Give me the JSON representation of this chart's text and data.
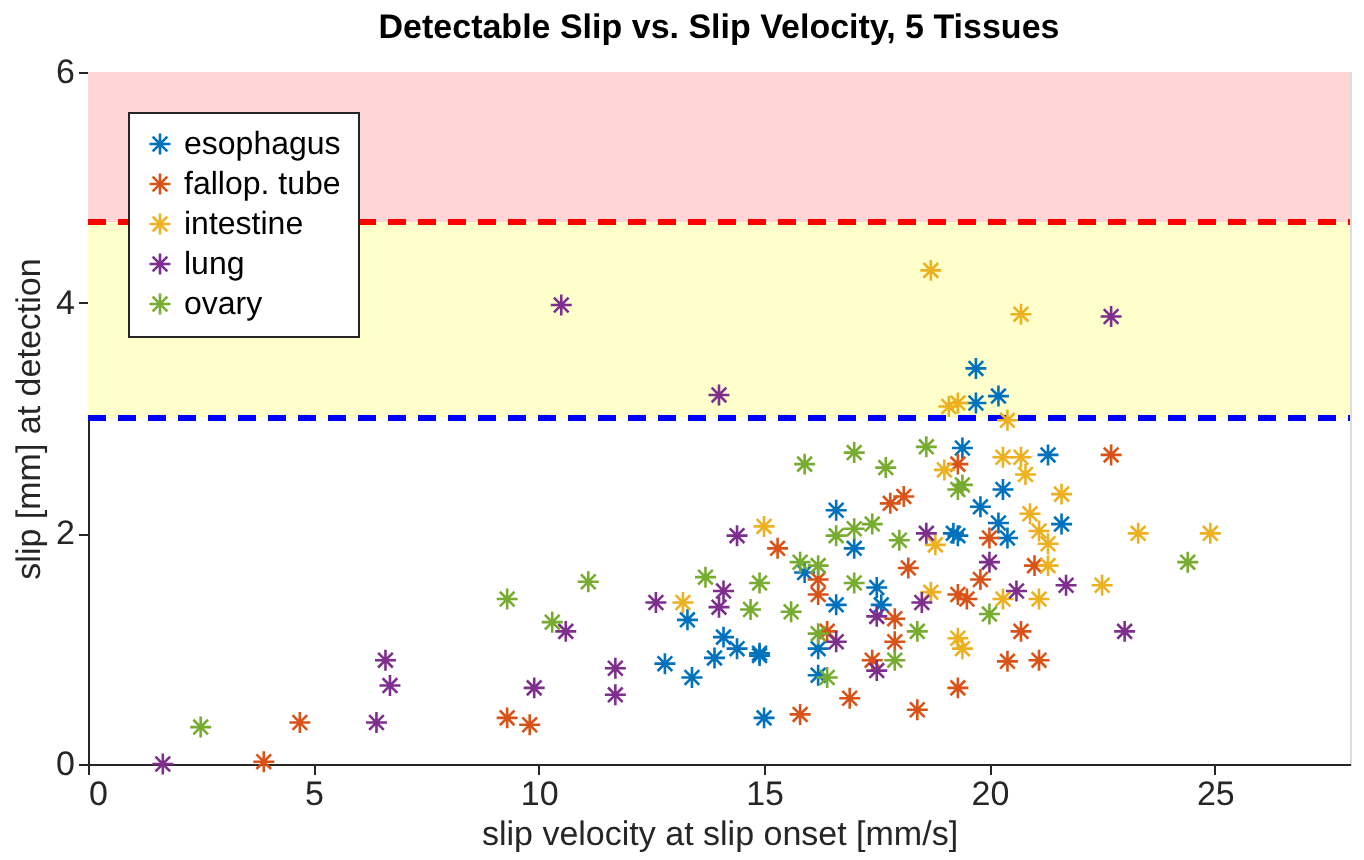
{
  "chart_data": {
    "type": "scatter",
    "title": "Detectable Slip vs. Slip Velocity, 5 Tissues",
    "xlabel": "slip velocity at slip onset [mm/s]",
    "ylabel": "slip [mm] at detection",
    "xlim": [
      0,
      28
    ],
    "xticks": [
      0,
      5,
      10,
      15,
      20,
      25
    ],
    "ylim": [
      0,
      6
    ],
    "yticks": [
      0,
      2,
      4,
      6
    ],
    "grid": false,
    "legend": "top left",
    "marker": "cross",
    "bands": [
      {
        "axis": "y",
        "from": 3,
        "to": 4.7,
        "color": "#ffffcc"
      },
      {
        "axis": "y",
        "from": 4.7,
        "to": 6,
        "color": "#ffd5d5"
      }
    ],
    "ref_lines": [
      {
        "axis": "y",
        "value": 4.7,
        "color": "#ff0000",
        "line_style": "dashed"
      },
      {
        "axis": "y",
        "value": 3,
        "color": "#0000ff",
        "line_style": "dashed"
      }
    ],
    "series": [
      {
        "name": "esophagus",
        "color": "#0072bd",
        "x": [
          12.8,
          13.4,
          13.9,
          14.1,
          14.4,
          14.9,
          13.3,
          15.0,
          16.6,
          17.0,
          15.9,
          17.5,
          19.2,
          16.6,
          17.6,
          16.2,
          16.2,
          14.9,
          19.4,
          19.7,
          19.7,
          20.2,
          21.3,
          20.3,
          19.8,
          20.2,
          21.6,
          19.3,
          20.4
        ],
        "values": [
          0.87,
          0.75,
          0.92,
          1.1,
          1.0,
          0.94,
          1.25,
          0.4,
          2.2,
          1.87,
          1.66,
          1.53,
          2.0,
          1.38,
          1.38,
          1.0,
          0.77,
          0.96,
          2.74,
          3.43,
          3.13,
          3.19,
          2.68,
          2.38,
          2.23,
          2.09,
          2.08,
          1.98,
          1.96
        ]
      },
      {
        "name": "fallop. tube",
        "color": "#d95319",
        "x": [
          3.9,
          4.7,
          9.3,
          9.8,
          17.8,
          18.1,
          15.3,
          16.2,
          18.2,
          16.2,
          17.9,
          19.3,
          16.4,
          17.9,
          17.4,
          16.9,
          15.8,
          18.4,
          19.3,
          19.3,
          22.7,
          20.0,
          21.0,
          19.8,
          19.5,
          20.7,
          20.4,
          21.1
        ],
        "values": [
          0.02,
          0.36,
          0.4,
          0.34,
          2.26,
          2.32,
          1.87,
          1.6,
          1.7,
          1.47,
          1.26,
          1.47,
          1.15,
          1.06,
          0.9,
          0.57,
          0.43,
          0.47,
          0.66,
          2.6,
          2.68,
          1.96,
          1.72,
          1.6,
          1.43,
          1.15,
          0.89,
          0.9
        ]
      },
      {
        "name": "intestine",
        "color": "#edb120",
        "x": [
          13.2,
          15.0,
          18.8,
          18.7,
          19.3,
          19.0,
          20.7,
          20.4,
          20.3,
          20.7,
          20.8,
          21.6,
          20.9,
          21.1,
          23.3,
          24.9,
          21.3,
          21.3,
          22.5,
          20.3,
          21.1,
          19.4,
          18.7,
          19.1,
          19.3
        ],
        "values": [
          1.4,
          2.06,
          1.9,
          1.49,
          1.09,
          2.55,
          3.9,
          2.98,
          2.66,
          2.66,
          2.51,
          2.34,
          2.17,
          2.02,
          2.0,
          2.0,
          1.91,
          1.72,
          1.55,
          1.43,
          1.43,
          1.0,
          4.28,
          3.1,
          3.13
        ]
      },
      {
        "name": "lung",
        "color": "#7e2f8e",
        "x": [
          1.66,
          6.6,
          6.7,
          6.4,
          9.9,
          10.6,
          10.5,
          14.0,
          11.7,
          11.7,
          12.6,
          14.1,
          14.0,
          14.4,
          18.6,
          17.5,
          18.5,
          16.6,
          17.5,
          22.7,
          20.0,
          21.7,
          20.6,
          23.0
        ],
        "values": [
          0.0,
          0.9,
          0.68,
          0.36,
          0.66,
          1.15,
          3.98,
          3.2,
          0.83,
          0.6,
          1.4,
          1.5,
          1.36,
          1.98,
          2.0,
          1.28,
          1.4,
          1.06,
          0.81,
          3.88,
          1.75,
          1.55,
          1.5,
          1.15
        ]
      },
      {
        "name": "ovary",
        "color": "#77ac30",
        "x": [
          2.5,
          9.3,
          10.3,
          11.1,
          13.7,
          14.9,
          14.7,
          15.9,
          17.0,
          17.7,
          18.6,
          17.0,
          17.4,
          16.6,
          15.8,
          16.2,
          17.0,
          18.0,
          15.6,
          18.4,
          16.2,
          17.9,
          16.4,
          19.3,
          19.4,
          24.4,
          20.0
        ],
        "values": [
          0.32,
          1.43,
          1.23,
          1.58,
          1.62,
          1.57,
          1.34,
          2.6,
          2.7,
          2.57,
          2.75,
          2.04,
          2.08,
          1.98,
          1.75,
          1.72,
          1.57,
          1.94,
          1.32,
          1.15,
          1.13,
          0.9,
          0.75,
          2.38,
          2.42,
          1.75,
          1.3
        ]
      }
    ]
  }
}
